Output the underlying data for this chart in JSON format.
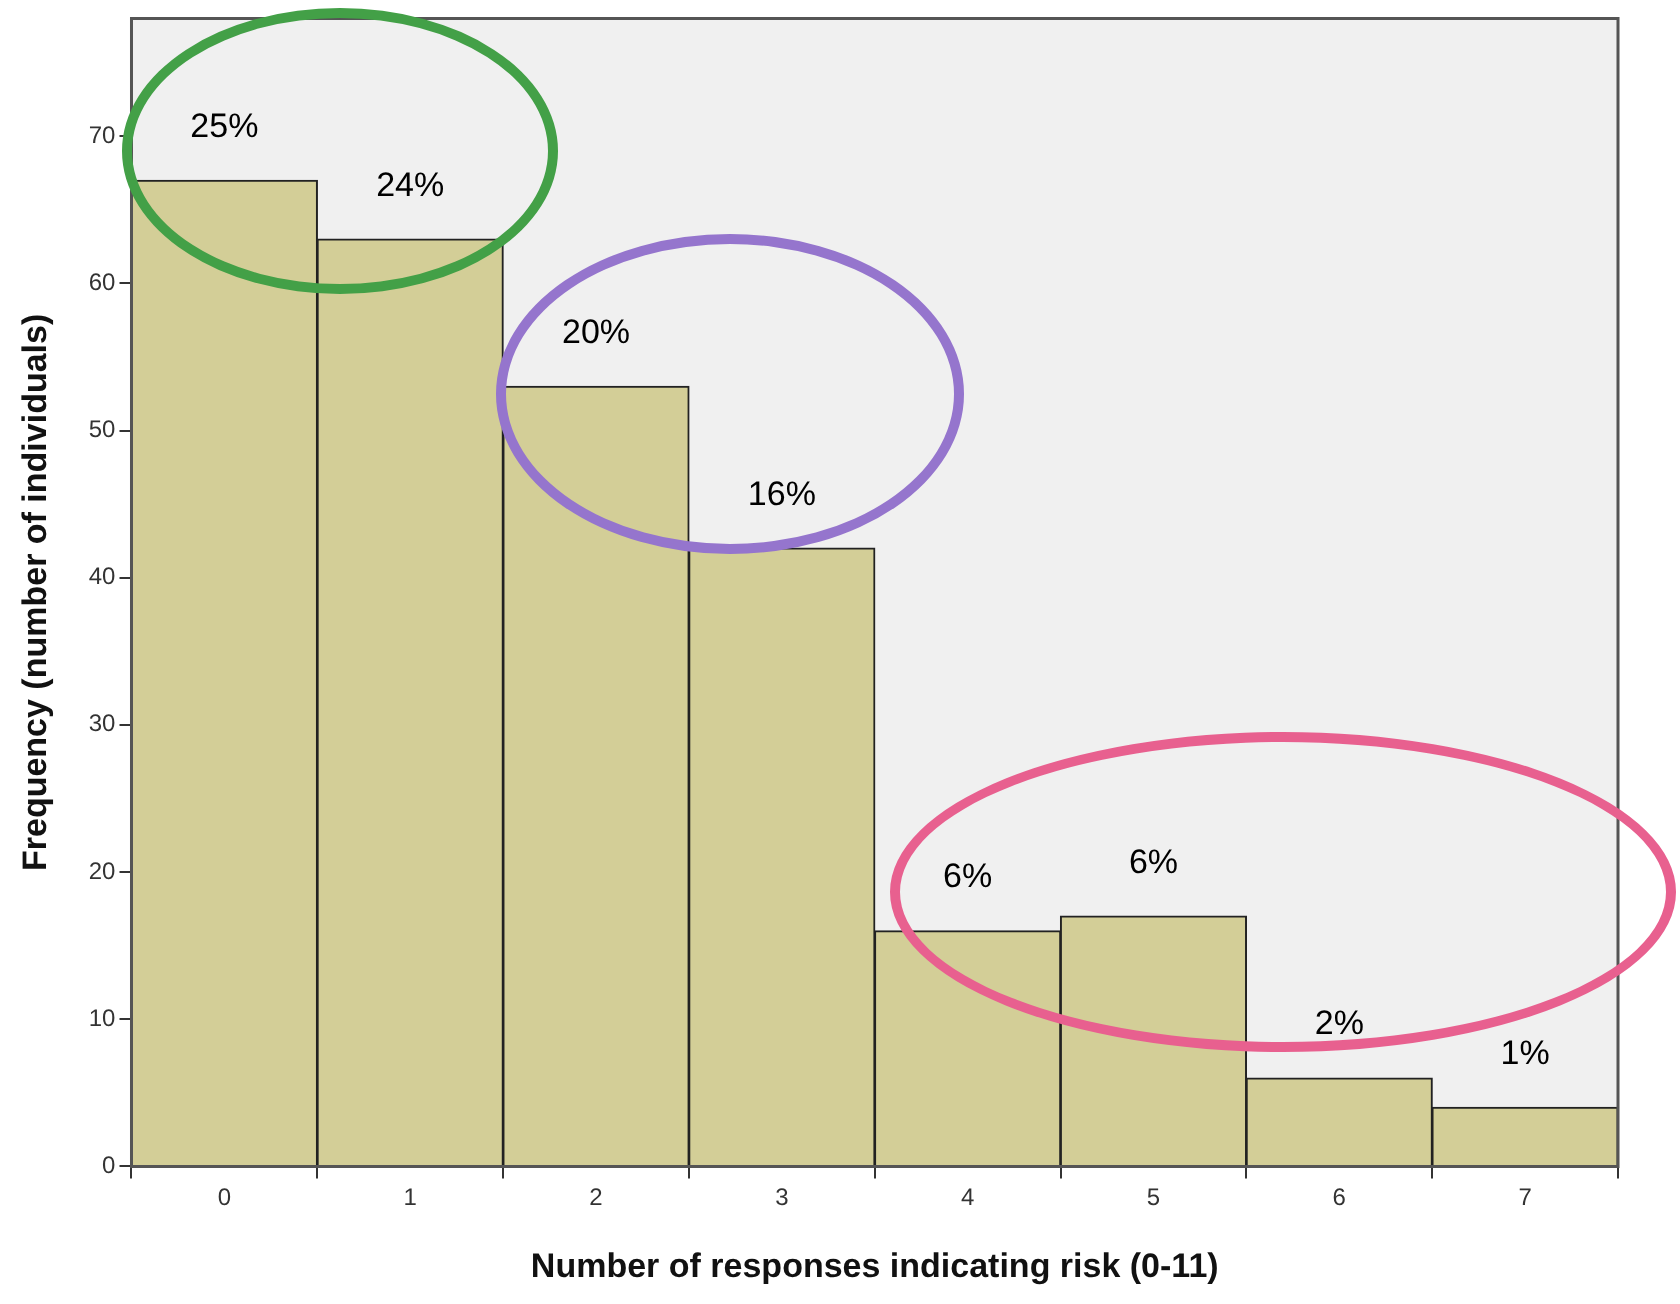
{
  "chart_data": {
    "type": "bar",
    "xlabel": "Number of responses indicating risk (0-11)",
    "ylabel": "Frequency (number of individuals)",
    "categories": [
      "0",
      "1",
      "2",
      "3",
      "4",
      "5",
      "6",
      "7"
    ],
    "values": [
      67,
      63,
      53,
      42,
      16,
      17,
      6,
      4
    ],
    "annotations": [
      {
        "text": "25%",
        "x": "0",
        "y": 67
      },
      {
        "text": "24%",
        "x": "1",
        "y": 63
      },
      {
        "text": "20%",
        "x": "2",
        "y": 53
      },
      {
        "text": "16%",
        "x": "3",
        "y": 42
      },
      {
        "text": "6%",
        "x": "4",
        "y": 16
      },
      {
        "text": "6%",
        "x": "5",
        "y": 17
      },
      {
        "text": "2%",
        "x": "6",
        "y": 6
      },
      {
        "text": "1%",
        "x": "7",
        "y": 4
      }
    ],
    "color": "#d3ce97",
    "ylim": [
      0,
      78
    ],
    "yticks": [
      0,
      10,
      20,
      30,
      40,
      50,
      60,
      70
    ]
  }
}
